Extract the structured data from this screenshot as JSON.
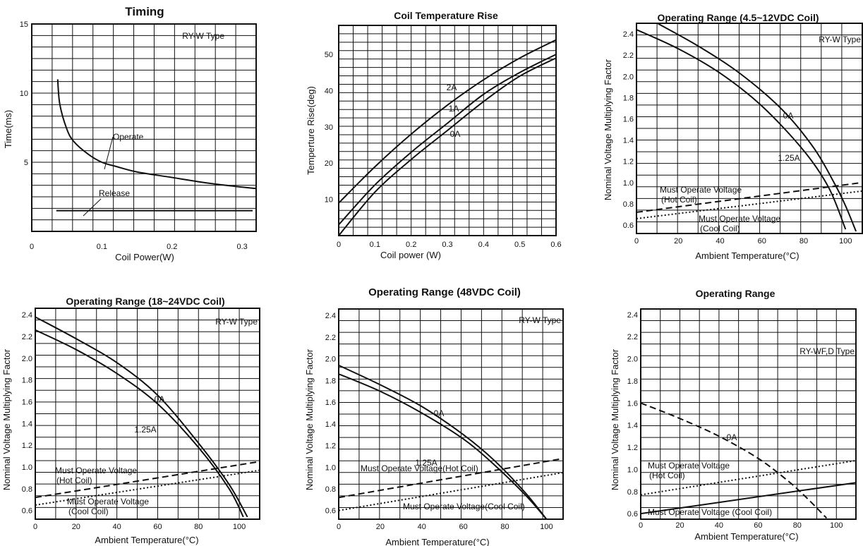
{
  "colors": {
    "background": "#ffffff",
    "ink": "#111111"
  },
  "chart_data": [
    {
      "type": "line",
      "title": "Timing",
      "xlabel": "Coil Power(W)",
      "ylabel": "Time(ms)",
      "xlim": [
        0,
        0.32
      ],
      "ylim": [
        0,
        15
      ],
      "xticks": [
        "0",
        "0.1",
        "0.2",
        "0.3"
      ],
      "yticks": [
        "5",
        "10",
        "15"
      ],
      "grid": true,
      "type_label": "RY-W Type",
      "series": [
        {
          "name": "Operate",
          "x": [
            0.037,
            0.04,
            0.05,
            0.06,
            0.08,
            0.1,
            0.12,
            0.15,
            0.2,
            0.25,
            0.3,
            0.32
          ],
          "y": [
            11.0,
            9.2,
            7.4,
            6.5,
            5.6,
            5.0,
            4.7,
            4.3,
            3.9,
            3.5,
            3.2,
            3.1
          ]
        },
        {
          "name": "Release",
          "x": [
            0.035,
            0.315
          ],
          "y": [
            1.5,
            1.5
          ]
        }
      ],
      "annotations": [
        "Operate",
        "Release"
      ]
    },
    {
      "type": "line",
      "title": "Coil Temperature Rise",
      "xlabel": "Coil power (W)",
      "ylabel": "Temperture Rise(deg)",
      "xlim": [
        0,
        0.6
      ],
      "ylim": [
        0,
        58
      ],
      "xticks": [
        "0",
        "0.1",
        "0.2",
        "0.3",
        "0.4",
        "0.5",
        "0.6"
      ],
      "yticks": [
        "10",
        "20",
        "30",
        "40",
        "50"
      ],
      "grid": true,
      "series": [
        {
          "name": "2A",
          "x": [
            0,
            0.1,
            0.2,
            0.3,
            0.4,
            0.5,
            0.6
          ],
          "y": [
            9,
            19,
            28,
            36,
            43,
            49,
            54
          ]
        },
        {
          "name": "1A",
          "x": [
            0,
            0.1,
            0.2,
            0.3,
            0.4,
            0.5,
            0.6
          ],
          "y": [
            3,
            14,
            23,
            31,
            39,
            45,
            50
          ]
        },
        {
          "name": "0A",
          "x": [
            0,
            0.1,
            0.2,
            0.3,
            0.4,
            0.5,
            0.6
          ],
          "y": [
            0,
            12,
            21,
            29,
            37,
            44,
            49
          ]
        }
      ]
    },
    {
      "type": "line",
      "title": "Operating Range (4.5~12VDC Coil)",
      "xlabel": "Ambient Temperature(°C)",
      "ylabel": "Nominal Voltage Multiplying Factor",
      "xlim": [
        0,
        108
      ],
      "ylim": [
        0.52,
        2.5
      ],
      "xticks": [
        "0",
        "20",
        "40",
        "60",
        "80",
        "100"
      ],
      "yticks": [
        "0.6",
        "0.8",
        "1.0",
        "1.2",
        "1.4",
        "1.6",
        "1.8",
        "2.0",
        "2.2",
        "2.4"
      ],
      "grid": true,
      "type_label": "RY-W Type",
      "series": [
        {
          "name": "0A",
          "x": [
            10,
            30,
            50,
            70,
            85,
            95,
            100,
            105
          ],
          "y": [
            2.5,
            2.28,
            2.02,
            1.68,
            1.32,
            0.98,
            0.78,
            0.54
          ]
        },
        {
          "name": "1.25A",
          "x": [
            0,
            20,
            40,
            60,
            80,
            92,
            100
          ],
          "y": [
            2.44,
            2.26,
            2.03,
            1.72,
            1.3,
            0.95,
            0.56
          ]
        },
        {
          "name": "Must Operate Voltage (Hot Coil)",
          "x": [
            0,
            108
          ],
          "y": [
            0.72,
            1.0
          ]
        },
        {
          "name": "Must Operate Voltage (Cool Coil)",
          "x": [
            0,
            108
          ],
          "y": [
            0.66,
            0.92
          ]
        }
      ],
      "annotations": [
        "0A",
        "1.25A",
        "Must Operate Voltage",
        "(Hot Coil)",
        "Must Operate Voltage",
        "(Cool Coil)"
      ]
    },
    {
      "type": "line",
      "title": "Operating Range (18~24VDC Coil)",
      "xlabel": "Ambient Temperature(°C)",
      "ylabel": "Nominal Voltage Multiplying Factor",
      "xlim": [
        0,
        110
      ],
      "ylim": [
        0.52,
        2.46
      ],
      "xticks": [
        "0",
        "20",
        "40",
        "60",
        "80",
        "100"
      ],
      "yticks": [
        "0.6",
        "0.8",
        "1.0",
        "1.2",
        "1.4",
        "1.6",
        "1.8",
        "2.0",
        "2.2",
        "2.4"
      ],
      "grid": true,
      "type_label": "RY-W Type",
      "series": [
        {
          "name": "0A",
          "x": [
            0,
            20,
            40,
            60,
            80,
            95,
            104
          ],
          "y": [
            2.38,
            2.18,
            1.96,
            1.66,
            1.22,
            0.84,
            0.54
          ]
        },
        {
          "name": "1.25A",
          "x": [
            0,
            20,
            40,
            60,
            80,
            95,
            102
          ],
          "y": [
            2.26,
            2.08,
            1.86,
            1.58,
            1.18,
            0.8,
            0.54
          ]
        },
        {
          "name": "Must Operate Voltage (Hot Coil)",
          "x": [
            0,
            110
          ],
          "y": [
            0.72,
            1.05
          ]
        },
        {
          "name": "Must Operate Voltage (Cool Coil)",
          "x": [
            0,
            110
          ],
          "y": [
            0.65,
            0.97
          ]
        }
      ],
      "annotations": [
        "0A",
        "1.25A",
        "Must Operate Voltage",
        "(Hot Coil)",
        "Must Operate Voltage",
        "(Cool Coil)"
      ]
    },
    {
      "type": "line",
      "title": "Operating Range (48VDC Coil)",
      "xlabel": "Ambient Temperature(°C)",
      "ylabel": "Nominal Voltage Multiplying Factor",
      "xlim": [
        0,
        108
      ],
      "ylim": [
        0.52,
        2.46
      ],
      "xticks": [
        "0",
        "20",
        "40",
        "60",
        "80",
        "100"
      ],
      "yticks": [
        "0.6",
        "0.8",
        "1.0",
        "1.2",
        "1.4",
        "1.6",
        "1.8",
        "2.0",
        "2.2",
        "2.4"
      ],
      "grid": true,
      "type_label": "RY-W Type",
      "series": [
        {
          "name": "0A",
          "x": [
            0,
            20,
            40,
            60,
            75,
            90,
            100
          ],
          "y": [
            1.94,
            1.76,
            1.56,
            1.3,
            1.06,
            0.76,
            0.52
          ]
        },
        {
          "name": "1.25A",
          "x": [
            0,
            20,
            40,
            60,
            75,
            90,
            100
          ],
          "y": [
            1.86,
            1.7,
            1.5,
            1.26,
            1.02,
            0.74,
            0.52
          ]
        },
        {
          "name": "Must Operate Voltage(Hot Coil)",
          "x": [
            0,
            108
          ],
          "y": [
            0.72,
            1.08
          ]
        },
        {
          "name": "Must Operate Voltage(Cool Coil)",
          "x": [
            0,
            108
          ],
          "y": [
            0.6,
            0.95
          ]
        }
      ],
      "annotations": [
        "0A",
        "1.25A",
        "Must Operate Voltage(Hot Coil)",
        "Must Operate Voltage(Cool Coil)"
      ]
    },
    {
      "type": "line",
      "title": "Operating Range",
      "xlabel": "Ambient Temperature(°C)",
      "ylabel": "Nominal Voltage Multiplying Factor",
      "xlim": [
        0,
        110
      ],
      "ylim": [
        0.55,
        2.45
      ],
      "xticks": [
        "0",
        "20",
        "40",
        "60",
        "80",
        "100"
      ],
      "yticks": [
        "0.6",
        "0.8",
        "1.0",
        "1.2",
        "1.4",
        "1.6",
        "1.8",
        "2.0",
        "2.2",
        "2.4"
      ],
      "grid": true,
      "type_label": "RY-WF,D Type",
      "series": [
        {
          "name": "0A",
          "x": [
            0,
            20,
            40,
            60,
            75,
            85,
            95
          ],
          "y": [
            1.6,
            1.46,
            1.3,
            1.1,
            0.9,
            0.74,
            0.56
          ]
        },
        {
          "name": "Must Operate Voltage (Hot Coil)",
          "x": [
            0,
            110
          ],
          "y": [
            0.77,
            1.08
          ]
        },
        {
          "name": "Must Operate Voltage (Cool Coil)",
          "x": [
            0,
            110
          ],
          "y": [
            0.6,
            0.88
          ]
        }
      ],
      "annotations": [
        "0A",
        "Must Operate Voltage",
        "(Hot Coil)",
        "Must Operate Voltage (Cool Coil)"
      ]
    }
  ]
}
